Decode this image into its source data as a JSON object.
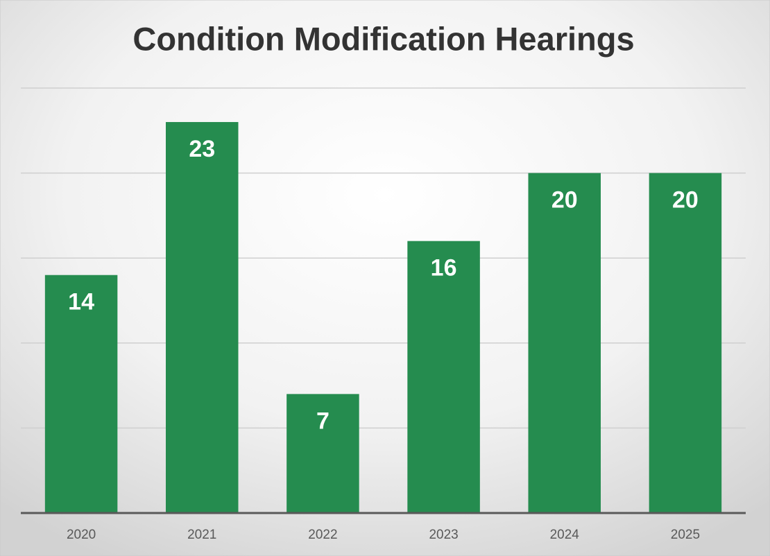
{
  "chart_data": {
    "type": "bar",
    "title": "Condition Modification Hearings",
    "categories": [
      "2020",
      "2021",
      "2022",
      "2023",
      "2024",
      "2025"
    ],
    "values": [
      14,
      23,
      7,
      16,
      20,
      20
    ],
    "color": "#258c4f",
    "ylim": [
      0,
      25
    ],
    "yticks": [
      0,
      5,
      10,
      15,
      20,
      25
    ],
    "grid": true
  }
}
